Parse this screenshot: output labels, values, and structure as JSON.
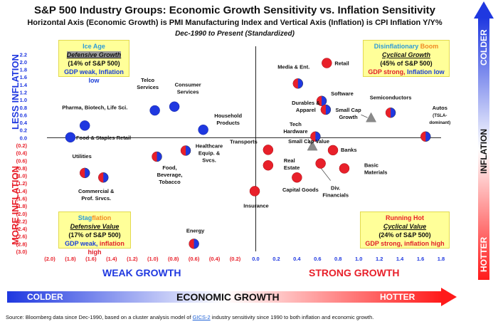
{
  "title": "S&P 500 Industry Groups: Economic Growth Sensitivity vs. Inflation Sensitivity",
  "subtitle": "Horizontal Axis (Economic Growth) is PMI Manufacturing Index and Vertical Axis (Inflation) is CPI Inflation Y/Y%",
  "date_range": "Dec-1990 to Present (Standardized)",
  "side_labels": {
    "less_inflation": "LESS INFLATION",
    "more_inflation": "MORE INFLATION"
  },
  "growth_labels": {
    "weak": "WEAK GROWTH",
    "strong": "STRONG GROWTH"
  },
  "quadrants": {
    "ice_age": {
      "name_a": "Ice Age",
      "name_b": "",
      "style": "Defensive Growth",
      "share": "(14% of S&P 500)",
      "growth": "GDP weak, Inflation low"
    },
    "disinflationary_boom": {
      "name_a": "Disinflationary",
      "name_b": " Boom",
      "style": "Cyclical Growth",
      "share": "(45% of S&P 500)",
      "growth_a": "GDP strong, ",
      "growth_b": "Inflation low"
    },
    "stagflation": {
      "name_a": "Stag",
      "name_b": "flation",
      "style": "Defensive Value",
      "share": "(17% of S&P 500)",
      "growth_a": "GDP weak, ",
      "growth_b": "inflation high"
    },
    "running_hot": {
      "name_a": "Running Hot",
      "name_b": "",
      "style": "Cyclical Value",
      "share": "(24% of S&P 500)",
      "growth": "GDP strong, inflation high"
    }
  },
  "bottom_arrow": {
    "left": "COLDER",
    "middle": "ECONOMIC GROWTH",
    "right": "HOTTER"
  },
  "right_arrow": {
    "top": "COLDER",
    "middle": "INFLATION",
    "bottom": "HOTTER"
  },
  "footer": {
    "text_a": "Source: Bloomberg data since Dec-1990, based on a cluster analysis model of ",
    "link": "GICS-2",
    "text_b": " industry sensitivity since 1990 to both inflation and economic growth."
  },
  "colors": {
    "blue": "#1f38e0",
    "red": "#e8202a",
    "grey": "#8a8a8a",
    "quad_bg": "#ffff99"
  },
  "chart_data": {
    "type": "scatter",
    "title": "S&P 500 Industry Groups: Economic Growth Sensitivity vs. Inflation Sensitivity",
    "xlabel": "",
    "ylabel": "",
    "xlim": [
      -2.0,
      1.8
    ],
    "ylim": [
      -3.0,
      2.3
    ],
    "x_ticks": [
      "(2.0)",
      "(1.8)",
      "(1.6)",
      "(1.4)",
      "(1.2)",
      "(1.0)",
      "(0.8)",
      "(0.6)",
      "(0.4)",
      "(0.2)",
      "0.0",
      "0.2",
      "0.4",
      "0.6",
      "0.8",
      "1.0",
      "1.2",
      "1.4",
      "1.6",
      "1.8"
    ],
    "y_ticks": [
      "2.2",
      "2.0",
      "1.8",
      "1.6",
      "1.4",
      "1.2",
      "1.0",
      "0.8",
      "0.6",
      "0.4",
      "0.2",
      "0.0",
      "(0.2)",
      "(0.4)",
      "(0.6)",
      "(0.8)",
      "(1.0)",
      "(1.2)",
      "(1.4)",
      "(1.6)",
      "(1.8)",
      "(2.0)",
      "(2.2)",
      "(2.4)",
      "(2.6)",
      "(2.8)",
      "(3.0)"
    ],
    "grid": false,
    "points": [
      {
        "name": "Pharma, Biotech, Life Sci.",
        "x": -1.66,
        "y": 0.32,
        "style": "blue"
      },
      {
        "name": "Food & Staples Retail",
        "x": -1.8,
        "y": 0.01,
        "style": "blue"
      },
      {
        "name": "Telco Services",
        "x": -0.98,
        "y": 0.72,
        "style": "blue"
      },
      {
        "name": "Consumer Services",
        "x": -0.79,
        "y": 0.82,
        "style": "blue"
      },
      {
        "name": "Household Products",
        "x": -0.51,
        "y": 0.21,
        "style": "blue"
      },
      {
        "name": "Utilities",
        "x": -1.66,
        "y": -0.93,
        "style": "split"
      },
      {
        "name": "Commercial & Prof. Srvcs.",
        "x": -1.48,
        "y": -1.05,
        "style": "split"
      },
      {
        "name": "Food, Beverage, Tobacco",
        "x": -0.96,
        "y": -0.5,
        "style": "split"
      },
      {
        "name": "Healthcare Equip. & Svcs.",
        "x": -0.68,
        "y": -0.34,
        "style": "split"
      },
      {
        "name": "Energy",
        "x": -0.6,
        "y": -2.8,
        "style": "split"
      },
      {
        "name": "Media & Ent.",
        "x": 0.41,
        "y": 1.43,
        "style": "split"
      },
      {
        "name": "Retail",
        "x": 0.69,
        "y": 1.97,
        "style": "red"
      },
      {
        "name": "Software",
        "x": 0.64,
        "y": 0.97,
        "style": "split"
      },
      {
        "name": "Durables & Apparel",
        "x": 0.68,
        "y": 0.74,
        "style": "split"
      },
      {
        "name": "Tech Hardware",
        "x": 0.58,
        "y": 0.03,
        "style": "split"
      },
      {
        "name": "Small Cap Growth",
        "x": 1.12,
        "y": 0.53,
        "style": "grey"
      },
      {
        "name": "Semiconductors",
        "x": 1.31,
        "y": 0.66,
        "style": "split"
      },
      {
        "name": "Autos (TSLA-dominant)",
        "x": 1.65,
        "y": 0.03,
        "style": "split"
      },
      {
        "name": "Transports",
        "x": 0.12,
        "y": -0.32,
        "style": "red"
      },
      {
        "name": "Small Cap Value",
        "x": 0.55,
        "y": -0.22,
        "style": "grey"
      },
      {
        "name": "Banks",
        "x": 0.75,
        "y": -0.33,
        "style": "red"
      },
      {
        "name": "Real Estate",
        "x": 0.12,
        "y": -0.73,
        "style": "red"
      },
      {
        "name": "Div. Financials",
        "x": 0.63,
        "y": -0.68,
        "style": "red"
      },
      {
        "name": "Basic Materials",
        "x": 0.86,
        "y": -0.81,
        "style": "red"
      },
      {
        "name": "Capital Goods",
        "x": 0.4,
        "y": -1.05,
        "style": "red"
      },
      {
        "name": "Insurance",
        "x": -0.01,
        "y": -1.41,
        "style": "red"
      }
    ]
  }
}
